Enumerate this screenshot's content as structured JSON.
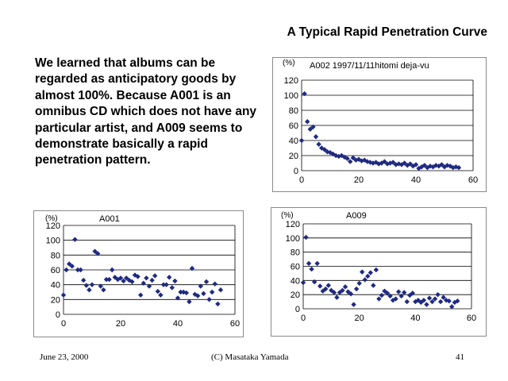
{
  "slide": {
    "title": "A Typical Rapid Penetration Curve",
    "body": "We learned that albums can be regarded as anticipatory goods by almost 100%. Because A001 is an omnibus CD which does not have any particular artist, and A009 seems to demonstrate basically a rapid penetration pattern."
  },
  "footer": {
    "date": "June 23, 2000",
    "copyright": "(C) Masataka Yamada",
    "page": "41"
  },
  "colors": {
    "marker": "#1f2a80",
    "grid": "#000000",
    "border": "#8a8a8a"
  },
  "chart_data": [
    {
      "type": "scatter",
      "title": "A002 1997/11/11hitomi deja-vu",
      "ylabel": "(%)",
      "xlim": [
        0,
        60
      ],
      "ylim": [
        0,
        120
      ],
      "xticks": [
        0,
        20,
        40,
        60
      ],
      "yticks": [
        0,
        20,
        40,
        60,
        80,
        100,
        120
      ],
      "grid": true,
      "x": [
        0,
        1,
        2,
        3,
        4,
        5,
        6,
        7,
        8,
        9,
        10,
        11,
        12,
        13,
        14,
        15,
        16,
        17,
        18,
        19,
        20,
        21,
        22,
        23,
        24,
        25,
        26,
        27,
        28,
        29,
        30,
        31,
        32,
        33,
        34,
        35,
        36,
        37,
        38,
        39,
        40,
        41,
        42,
        43,
        44,
        45,
        46,
        47,
        48,
        49,
        50,
        51,
        52,
        53,
        54,
        55
      ],
      "y": [
        40,
        102,
        65,
        55,
        58,
        45,
        35,
        30,
        28,
        25,
        24,
        22,
        20,
        19,
        20,
        18,
        16,
        12,
        17,
        14,
        15,
        13,
        14,
        12,
        11,
        10,
        11,
        9,
        10,
        12,
        9,
        10,
        11,
        8,
        9,
        8,
        10,
        7,
        9,
        6,
        8,
        3,
        5,
        7,
        4,
        6,
        5,
        7,
        6,
        8,
        5,
        7,
        6,
        4,
        5,
        4
      ]
    },
    {
      "type": "scatter",
      "title": "A001",
      "ylabel": "(%)",
      "xlim": [
        0,
        60
      ],
      "ylim": [
        0,
        120
      ],
      "xticks": [
        0,
        20,
        40,
        60
      ],
      "yticks": [
        0,
        20,
        40,
        60,
        80,
        100,
        120
      ],
      "grid": true,
      "x": [
        0,
        1,
        2,
        3,
        4,
        5,
        6,
        7,
        8,
        9,
        10,
        11,
        12,
        13,
        14,
        15,
        16,
        17,
        18,
        19,
        20,
        21,
        22,
        23,
        24,
        25,
        26,
        27,
        28,
        29,
        30,
        31,
        32,
        33,
        34,
        35,
        36,
        37,
        38,
        39,
        40,
        41,
        42,
        43,
        44,
        45,
        46,
        47,
        48,
        49,
        50,
        51,
        52,
        53,
        54,
        55
      ],
      "y": [
        26,
        60,
        68,
        65,
        101,
        60,
        60,
        46,
        39,
        33,
        40,
        85,
        82,
        38,
        33,
        47,
        47,
        60,
        50,
        47,
        49,
        45,
        49,
        46,
        44,
        53,
        51,
        26,
        42,
        49,
        38,
        46,
        52,
        31,
        26,
        40,
        40,
        50,
        36,
        45,
        22,
        30,
        30,
        29,
        17,
        62,
        27,
        25,
        38,
        28,
        44,
        20,
        30,
        41,
        14,
        33
      ]
    },
    {
      "type": "scatter",
      "title": "A009",
      "ylabel": "(%)",
      "xlim": [
        0,
        60
      ],
      "ylim": [
        0,
        120
      ],
      "xticks": [
        0,
        20,
        40,
        60
      ],
      "yticks": [
        0,
        20,
        40,
        60,
        80,
        100,
        120
      ],
      "grid": true,
      "x": [
        0,
        1,
        2,
        3,
        4,
        5,
        6,
        7,
        8,
        9,
        10,
        11,
        12,
        13,
        14,
        15,
        16,
        17,
        18,
        19,
        20,
        21,
        22,
        23,
        24,
        25,
        26,
        27,
        28,
        29,
        30,
        31,
        32,
        33,
        34,
        35,
        36,
        37,
        38,
        39,
        40,
        41,
        42,
        43,
        44,
        45,
        46,
        47,
        48,
        49,
        50,
        51,
        52,
        53,
        54,
        55
      ],
      "y": [
        37,
        101,
        64,
        56,
        38,
        64,
        32,
        25,
        28,
        33,
        26,
        23,
        16,
        23,
        26,
        31,
        24,
        21,
        6,
        28,
        36,
        52,
        41,
        46,
        51,
        33,
        55,
        14,
        19,
        25,
        22,
        18,
        12,
        14,
        24,
        18,
        23,
        10,
        19,
        22,
        10,
        12,
        9,
        12,
        6,
        15,
        10,
        14,
        20,
        10,
        16,
        12,
        11,
        3,
        9,
        11
      ]
    }
  ]
}
